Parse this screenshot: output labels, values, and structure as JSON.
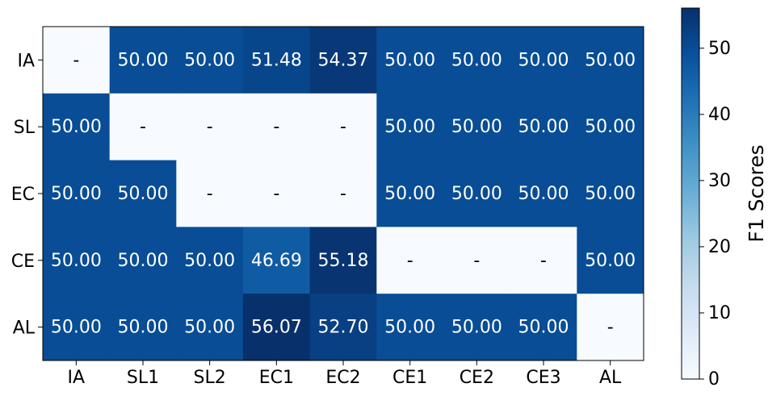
{
  "chart_data": {
    "type": "heatmap",
    "rows": [
      "IA",
      "SL",
      "EC",
      "CE",
      "AL"
    ],
    "columns": [
      "IA",
      "SL1",
      "SL2",
      "EC1",
      "EC2",
      "CE1",
      "CE2",
      "CE3",
      "AL"
    ],
    "values": [
      [
        null,
        50.0,
        50.0,
        51.48,
        54.37,
        50.0,
        50.0,
        50.0,
        50.0
      ],
      [
        50.0,
        null,
        null,
        null,
        null,
        50.0,
        50.0,
        50.0,
        50.0
      ],
      [
        50.0,
        50.0,
        null,
        null,
        null,
        50.0,
        50.0,
        50.0,
        50.0
      ],
      [
        50.0,
        50.0,
        50.0,
        46.69,
        55.18,
        null,
        null,
        null,
        50.0
      ],
      [
        50.0,
        50.0,
        50.0,
        56.07,
        52.7,
        50.0,
        50.0,
        50.0,
        null
      ]
    ],
    "missing_label": "-",
    "colorbar": {
      "label": "F1 Scores",
      "range": [
        0,
        56.07
      ],
      "ticks": [
        0,
        10,
        20,
        30,
        40,
        50
      ],
      "colormap": "Blues"
    }
  }
}
